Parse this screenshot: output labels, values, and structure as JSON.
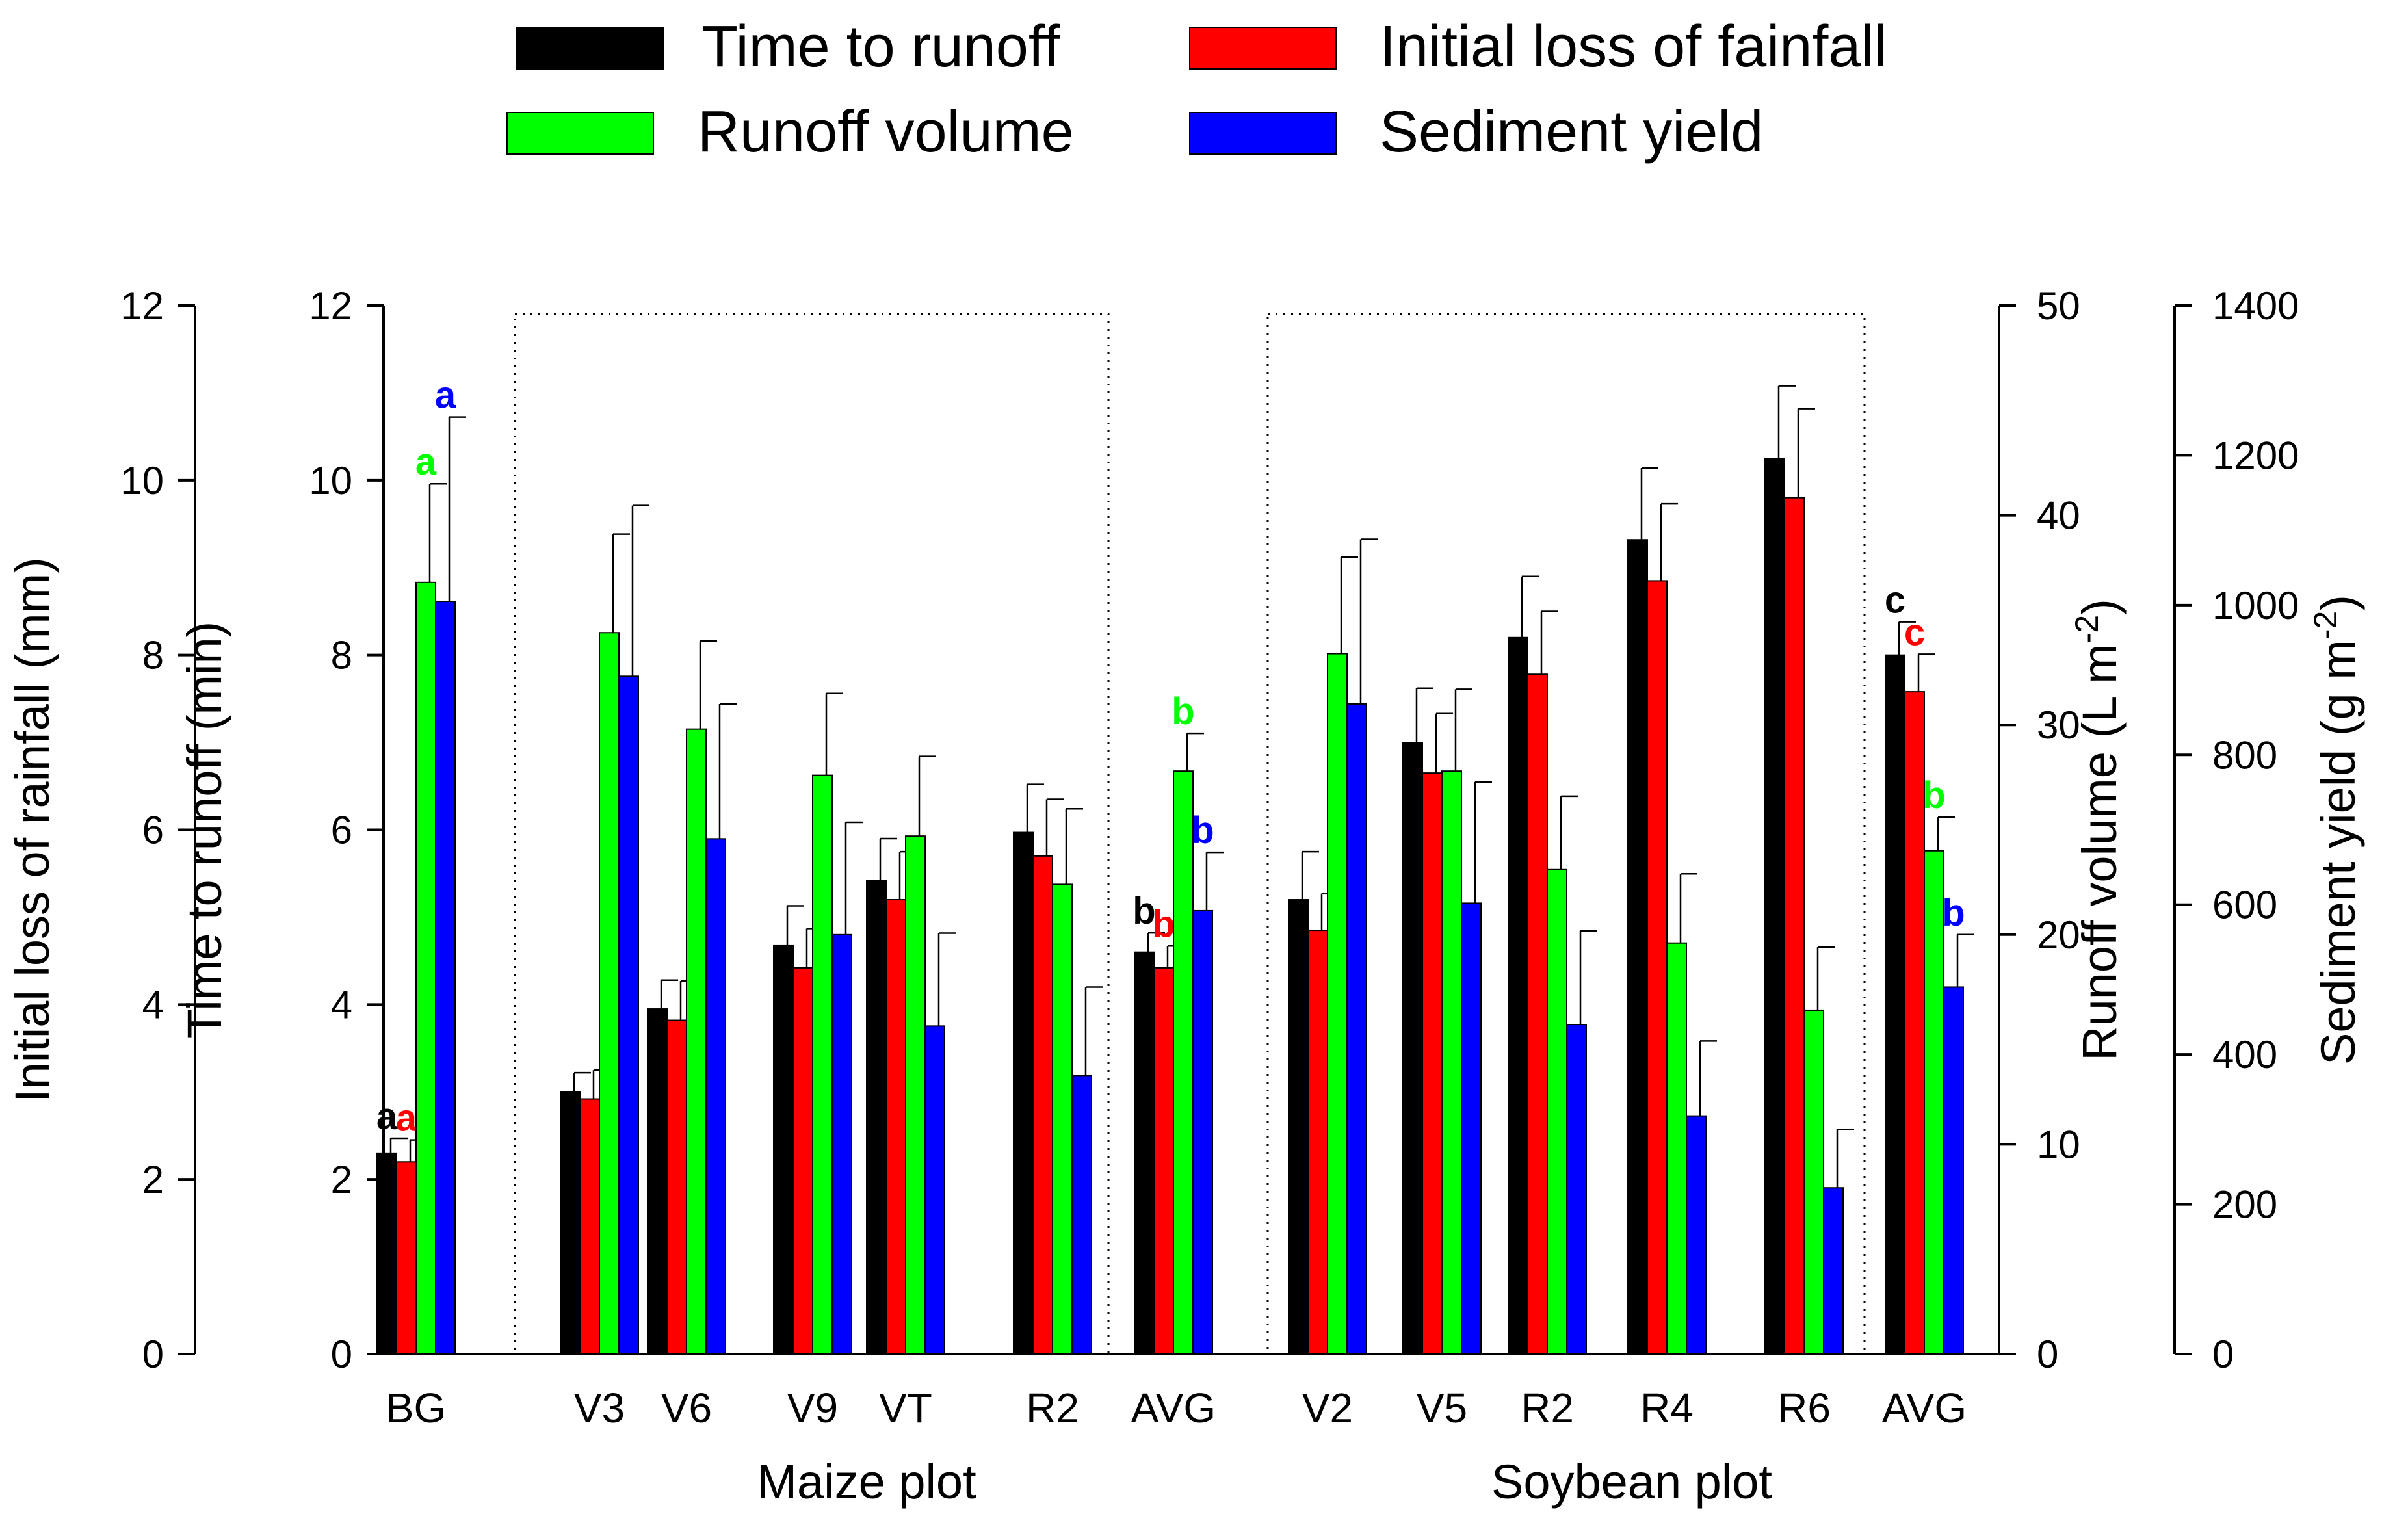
{
  "chart_data": {
    "type": "bar",
    "legend": [
      {
        "name": "Time to runoff",
        "color": "#000000"
      },
      {
        "name": "Initial loss of fainfall",
        "color": "#ff0000"
      },
      {
        "name": "Runoff volume",
        "color": "#00ff00"
      },
      {
        "name": "Sediment yield",
        "color": "#0000ff"
      }
    ],
    "legend_position": "top",
    "categories": [
      "BG",
      "V3",
      "V6",
      "V9",
      "VT",
      "R2",
      "AVG",
      "V2",
      "V5",
      "R2",
      "R4",
      "R6",
      "AVG"
    ],
    "groups": [
      {
        "label": "Maize plot",
        "categories": [
          "V3",
          "V6",
          "V9",
          "VT",
          "R2",
          "AVG"
        ]
      },
      {
        "label": "Soybean plot",
        "categories": [
          "V2",
          "V5",
          "R2",
          "R4",
          "R6",
          "AVG"
        ]
      }
    ],
    "axes": [
      {
        "id": "rain",
        "title": "Initial loss of rainfall (mm)",
        "side": "left-outer",
        "min": 0,
        "max": 12,
        "ticks": [
          "0",
          "2",
          "4",
          "6",
          "8",
          "10",
          "12"
        ]
      },
      {
        "id": "time",
        "title": "Time to runoff (min)",
        "side": "left-inner",
        "min": 0,
        "max": 12,
        "ticks": [
          "0",
          "2",
          "4",
          "6",
          "8",
          "10",
          "12"
        ]
      },
      {
        "id": "runoff",
        "title": "Runoff volume (L m",
        "title_sup": "-2",
        "title_end": ")",
        "side": "right-inner",
        "min": 0,
        "max": 50,
        "ticks": [
          "0",
          "10",
          "20",
          "30",
          "40",
          "50"
        ]
      },
      {
        "id": "sediment",
        "title": "Sediment yield (g m",
        "title_sup": "-2",
        "title_end": ")",
        "side": "right-outer",
        "min": 0,
        "max": 1400,
        "ticks": [
          "0",
          "200",
          "400",
          "600",
          "800",
          "1000",
          "1200",
          "1400"
        ]
      }
    ],
    "series": [
      {
        "name": "Time to runoff",
        "axis": "time",
        "color": "#000000",
        "values": [
          2.3,
          3.0,
          3.95,
          4.68,
          5.42,
          5.97,
          4.6,
          5.2,
          7.0,
          8.2,
          9.32,
          10.25,
          8.0
        ],
        "errors": [
          0.17,
          0.22,
          0.33,
          0.45,
          0.48,
          0.55,
          0.22,
          0.55,
          0.62,
          0.7,
          0.82,
          0.83,
          0.38
        ],
        "labels": [
          "a",
          "",
          "",
          "",
          "",
          "",
          "b",
          "",
          "",
          "",
          "",
          "",
          "c"
        ]
      },
      {
        "name": "Initial loss of fainfall",
        "axis": "rain",
        "color": "#ff0000",
        "values": [
          2.2,
          2.92,
          3.82,
          4.42,
          5.2,
          5.7,
          4.42,
          4.85,
          6.65,
          7.78,
          8.85,
          9.8,
          7.58
        ],
        "errors": [
          0.25,
          0.33,
          0.45,
          0.45,
          0.55,
          0.65,
          0.25,
          0.42,
          0.68,
          0.72,
          0.88,
          1.02,
          0.43
        ],
        "labels": [
          "a",
          "",
          "",
          "",
          "",
          "",
          "b",
          "",
          "",
          "",
          "",
          "",
          "c"
        ]
      },
      {
        "name": "Runoff volume",
        "axis": "runoff",
        "color": "#00ff00",
        "values": [
          36.8,
          34.4,
          29.8,
          27.6,
          24.7,
          22.4,
          27.8,
          33.4,
          27.8,
          23.1,
          19.6,
          16.4,
          24.0
        ],
        "errors": [
          4.7,
          4.7,
          4.2,
          3.9,
          3.8,
          3.6,
          1.8,
          4.6,
          3.9,
          3.5,
          3.3,
          3.0,
          1.6
        ],
        "labels": [
          "a",
          "",
          "",
          "",
          "",
          "",
          "b",
          "",
          "",
          "",
          "",
          "",
          "b"
        ]
      },
      {
        "name": "Sediment yield",
        "axis": "sediment",
        "color": "#0000ff",
        "values": [
          1005,
          905,
          688,
          560,
          438,
          372,
          592,
          868,
          602,
          440,
          318,
          222,
          490
        ],
        "errors": [
          246,
          228,
          180,
          150,
          124,
          118,
          78,
          220,
          162,
          125,
          100,
          78,
          70
        ],
        "labels": [
          "a",
          "",
          "",
          "",
          "",
          "",
          "b",
          "",
          "",
          "",
          "",
          "",
          "b"
        ]
      }
    ]
  }
}
